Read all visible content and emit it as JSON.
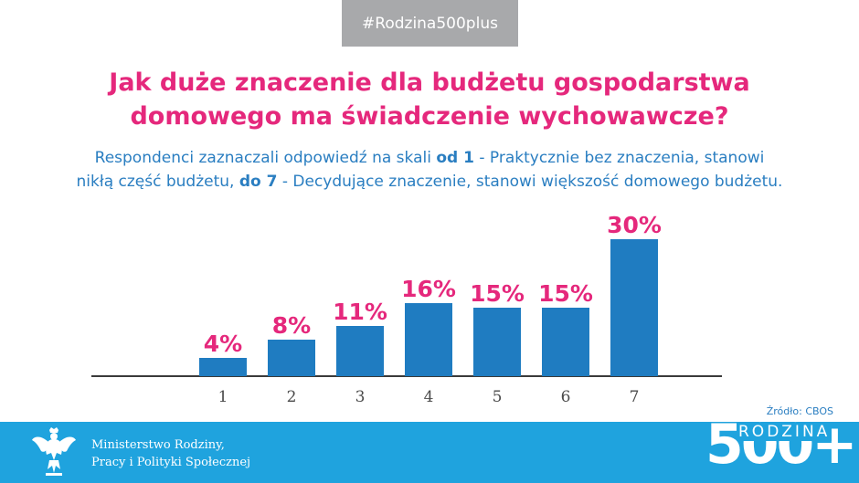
{
  "header": {
    "hashtag": "#Rodzina500plus",
    "title_line1": "Jak duże znaczenie dla budżetu gospodarstwa",
    "title_line2": "domowego ma świadczenie wychowawcze?",
    "subtitle_part1": "Respondenci zaznaczali odpowiedź na skali ",
    "subtitle_bold1": "od 1",
    "subtitle_part2": " - Praktycznie bez znaczenia, stanowi",
    "subtitle_part3": "nikłą część budżetu, ",
    "subtitle_bold2": "do 7",
    "subtitle_part4": " - Decydujące znaczenie, stanowi większość domowego budżetu."
  },
  "chart_data": {
    "type": "bar",
    "categories": [
      "1",
      "2",
      "3",
      "4",
      "5",
      "6",
      "7"
    ],
    "values": [
      4,
      8,
      11,
      16,
      15,
      15,
      30
    ],
    "value_labels": [
      "4%",
      "8%",
      "11%",
      "16%",
      "15%",
      "15%",
      "30%"
    ],
    "unit": "%",
    "ylim": [
      0,
      30
    ],
    "grid": false,
    "bar_color": "#1f7cc1",
    "label_color": "#e5287c"
  },
  "source": "Źródło: CBOS",
  "footer": {
    "ministry_line1": "Ministerstwo Rodziny,",
    "ministry_line2": "Pracy i Polityki Społecznej",
    "logo_number": "500+",
    "logo_word": "RODZINA",
    "emblem_icon": "polish-eagle-emblem-icon",
    "background_color": "#1fa3de"
  }
}
